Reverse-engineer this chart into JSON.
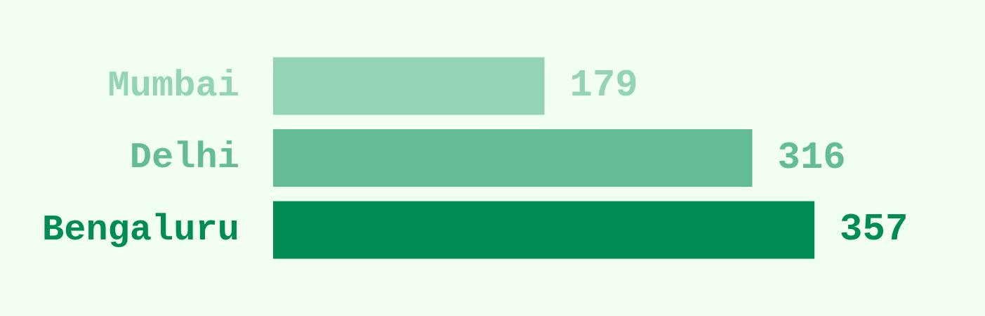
{
  "chart_data": {
    "type": "bar",
    "orientation": "horizontal",
    "categories": [
      "Mumbai",
      "Delhi",
      "Bengaluru"
    ],
    "values": [
      179,
      316,
      357
    ],
    "colors": [
      "#94d4b4",
      "#63bc96",
      "#008c52"
    ],
    "data_labels": true
  }
}
